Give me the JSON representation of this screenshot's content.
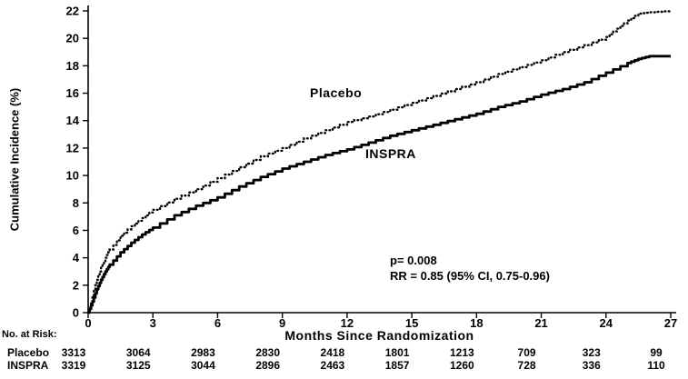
{
  "chart_data": {
    "type": "line",
    "curve_style": "kaplan-meier-step",
    "title": "",
    "xlabel": "Months Since Randomization",
    "ylabel": "Cumulative Incidence (%)",
    "xlim": [
      0,
      27
    ],
    "ylim": [
      0,
      22
    ],
    "xticks": [
      0,
      3,
      6,
      9,
      12,
      15,
      18,
      21,
      24,
      27
    ],
    "yticks": [
      0,
      2,
      4,
      6,
      8,
      10,
      12,
      14,
      16,
      18,
      20,
      22
    ],
    "grid": false,
    "legend_position": "inline-labels",
    "series": [
      {
        "name": "Placebo",
        "line_style": "dotted",
        "color": "#000000",
        "points": [
          [
            0,
            0
          ],
          [
            0.2,
            1.2
          ],
          [
            0.4,
            2.4
          ],
          [
            0.6,
            3.3
          ],
          [
            0.8,
            4.0
          ],
          [
            1,
            4.6
          ],
          [
            1.5,
            5.6
          ],
          [
            2,
            6.3
          ],
          [
            2.5,
            6.9
          ],
          [
            3,
            7.5
          ],
          [
            4,
            8.3
          ],
          [
            5,
            9.0
          ],
          [
            6,
            9.8
          ],
          [
            7,
            10.6
          ],
          [
            8,
            11.4
          ],
          [
            9,
            12.0
          ],
          [
            10,
            12.7
          ],
          [
            11,
            13.3
          ],
          [
            12,
            13.9
          ],
          [
            13,
            14.3
          ],
          [
            14,
            14.8
          ],
          [
            15,
            15.3
          ],
          [
            16,
            15.8
          ],
          [
            17,
            16.3
          ],
          [
            18,
            16.8
          ],
          [
            19,
            17.4
          ],
          [
            20,
            17.9
          ],
          [
            21,
            18.4
          ],
          [
            22,
            19.0
          ],
          [
            23,
            19.5
          ],
          [
            24,
            20.1
          ],
          [
            24.5,
            20.7
          ],
          [
            25,
            21.3
          ],
          [
            25.5,
            21.8
          ],
          [
            26,
            21.9
          ],
          [
            27,
            22.0
          ]
        ]
      },
      {
        "name": "INSPRA",
        "line_style": "solid",
        "color": "#000000",
        "points": [
          [
            0,
            0
          ],
          [
            0.2,
            0.8
          ],
          [
            0.4,
            1.7
          ],
          [
            0.6,
            2.4
          ],
          [
            0.8,
            3.0
          ],
          [
            1,
            3.5
          ],
          [
            1.5,
            4.4
          ],
          [
            2,
            5.1
          ],
          [
            2.5,
            5.7
          ],
          [
            3,
            6.2
          ],
          [
            4,
            7.1
          ],
          [
            5,
            7.8
          ],
          [
            6,
            8.4
          ],
          [
            7,
            9.2
          ],
          [
            8,
            9.9
          ],
          [
            9,
            10.5
          ],
          [
            10,
            11.0
          ],
          [
            11,
            11.5
          ],
          [
            12,
            11.9
          ],
          [
            13,
            12.4
          ],
          [
            14,
            12.9
          ],
          [
            15,
            13.3
          ],
          [
            16,
            13.7
          ],
          [
            17,
            14.1
          ],
          [
            18,
            14.5
          ],
          [
            19,
            15.0
          ],
          [
            20,
            15.4
          ],
          [
            21,
            15.9
          ],
          [
            22,
            16.3
          ],
          [
            23,
            16.8
          ],
          [
            24,
            17.5
          ],
          [
            25,
            18.2
          ],
          [
            25.5,
            18.5
          ],
          [
            26,
            18.7
          ],
          [
            27,
            18.7
          ]
        ]
      }
    ],
    "annotations": {
      "p_value": "p= 0.008",
      "rr": "RR = 0.85 (95% CI, 0.75-0.96)"
    },
    "at_risk": {
      "label": "No. at Risk:",
      "months": [
        0,
        3,
        6,
        9,
        12,
        15,
        18,
        21,
        24,
        27
      ],
      "rows": [
        {
          "name": "Placebo",
          "values": [
            3313,
            3064,
            2983,
            2830,
            2418,
            1801,
            1213,
            709,
            323,
            99
          ]
        },
        {
          "name": "INSPRA",
          "values": [
            3319,
            3125,
            3044,
            2896,
            2463,
            1857,
            1260,
            728,
            336,
            110
          ]
        }
      ]
    }
  }
}
